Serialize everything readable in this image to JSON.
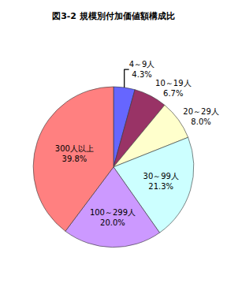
{
  "chart_data": {
    "type": "pie",
    "title": "図3-2 規模別付加価値額構成比",
    "categories": [
      "4～9人",
      "10～19人",
      "20～29人",
      "30～99人",
      "100～299人",
      "300人以上"
    ],
    "values": [
      4.3,
      6.7,
      8.0,
      21.3,
      20.0,
      39.8
    ],
    "value_labels": [
      "4.3%",
      "6.7%",
      "8.0%",
      "21.3%",
      "20.0%",
      "39.8%"
    ],
    "colors": [
      "#6666ff",
      "#993366",
      "#ffffcc",
      "#ccffff",
      "#cc99ff",
      "#ff8080"
    ],
    "data_labels": true
  }
}
